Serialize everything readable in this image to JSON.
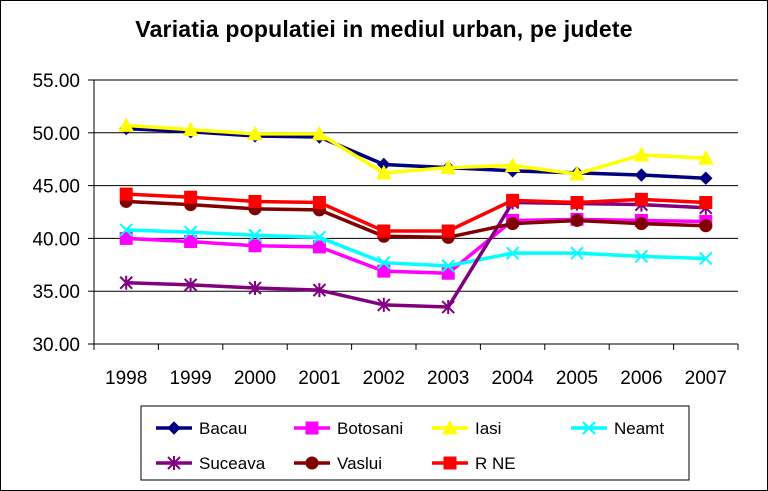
{
  "chart_data": {
    "type": "line",
    "title": "Variatia populatiei in mediul urban, pe judete",
    "categories": [
      "1998",
      "1999",
      "2000",
      "2001",
      "2002",
      "2003",
      "2004",
      "2005",
      "2006",
      "2007"
    ],
    "ylim": [
      30,
      55
    ],
    "yticks": [
      "30.00",
      "35.00",
      "40.00",
      "45.00",
      "50.00",
      "55.00"
    ],
    "grid": true,
    "legend_position": "bottom",
    "series": [
      {
        "name": "Bacau",
        "color": "#000080",
        "marker": "diamond",
        "values": [
          50.4,
          50.1,
          49.7,
          49.6,
          47.0,
          46.7,
          46.4,
          46.2,
          46.0,
          45.7
        ]
      },
      {
        "name": "Botosani",
        "color": "#FF00FF",
        "marker": "square",
        "values": [
          40.0,
          39.7,
          39.3,
          39.2,
          36.9,
          36.7,
          41.7,
          41.8,
          41.7,
          41.6
        ]
      },
      {
        "name": "Iasi",
        "color": "#FFFF00",
        "marker": "triangle",
        "values": [
          50.7,
          50.3,
          49.9,
          49.9,
          46.2,
          46.7,
          46.9,
          46.1,
          47.9,
          47.6
        ]
      },
      {
        "name": "Neamt",
        "color": "#00FFFF",
        "marker": "x",
        "values": [
          40.8,
          40.6,
          40.3,
          40.1,
          37.7,
          37.4,
          38.6,
          38.6,
          38.3,
          38.1
        ]
      },
      {
        "name": "Suceava",
        "color": "#800080",
        "marker": "star",
        "values": [
          35.8,
          35.6,
          35.3,
          35.1,
          33.7,
          33.5,
          43.4,
          43.3,
          43.2,
          42.9
        ]
      },
      {
        "name": "Vaslui",
        "color": "#800000",
        "marker": "circle",
        "values": [
          43.5,
          43.2,
          42.8,
          42.7,
          40.2,
          40.1,
          41.4,
          41.7,
          41.4,
          41.2
        ]
      },
      {
        "name": "R NE",
        "color": "#FF0000",
        "marker": "square",
        "values": [
          44.2,
          43.9,
          43.5,
          43.4,
          40.7,
          40.7,
          43.6,
          43.4,
          43.7,
          43.4
        ]
      }
    ]
  }
}
